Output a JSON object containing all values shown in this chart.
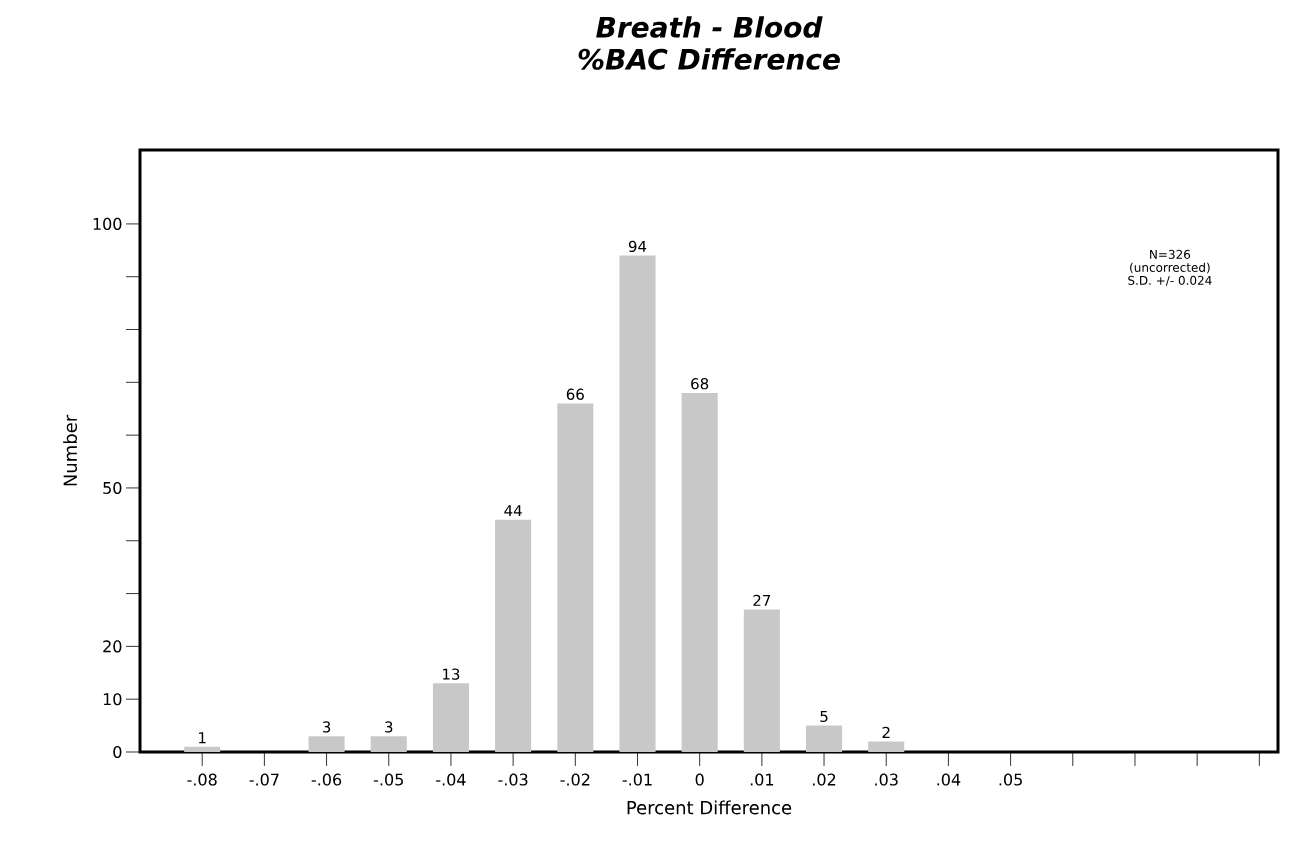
{
  "chart_data": {
    "type": "bar",
    "title": "Breath - Blood",
    "subtitle": "%BAC Difference",
    "xlabel": "Percent Difference",
    "ylabel": "Number",
    "categories": [
      "-.08",
      "-.07",
      "-.06",
      "-.05",
      "-.04",
      "-.03",
      "-.02",
      "-.01",
      "0",
      ".01",
      ".02",
      ".03",
      ".04",
      ".05",
      null,
      null,
      null,
      null
    ],
    "values": [
      1,
      0,
      3,
      3,
      13,
      44,
      66,
      94,
      68,
      27,
      5,
      2,
      0,
      0,
      null,
      null,
      null,
      null
    ],
    "value_labels": [
      "1",
      null,
      "3",
      "3",
      "13",
      "44",
      "66",
      "94",
      "68",
      "27",
      "5",
      "2",
      null,
      null,
      null,
      null,
      null,
      null
    ],
    "color": "#c8c8c8",
    "ylim": [
      0,
      114
    ],
    "yticks": [
      0,
      10,
      20,
      {
        "value": 30,
        "label": null
      },
      {
        "value": 40,
        "label": null
      },
      50,
      {
        "value": 60,
        "label": null
      },
      {
        "value": 70,
        "label": null
      },
      {
        "value": 80,
        "label": null
      },
      {
        "value": 90,
        "label": null
      },
      100
    ],
    "annotations": [
      "N=326",
      "(uncorrected)",
      "S.D.  +/-  0.024"
    ],
    "grid": false
  }
}
